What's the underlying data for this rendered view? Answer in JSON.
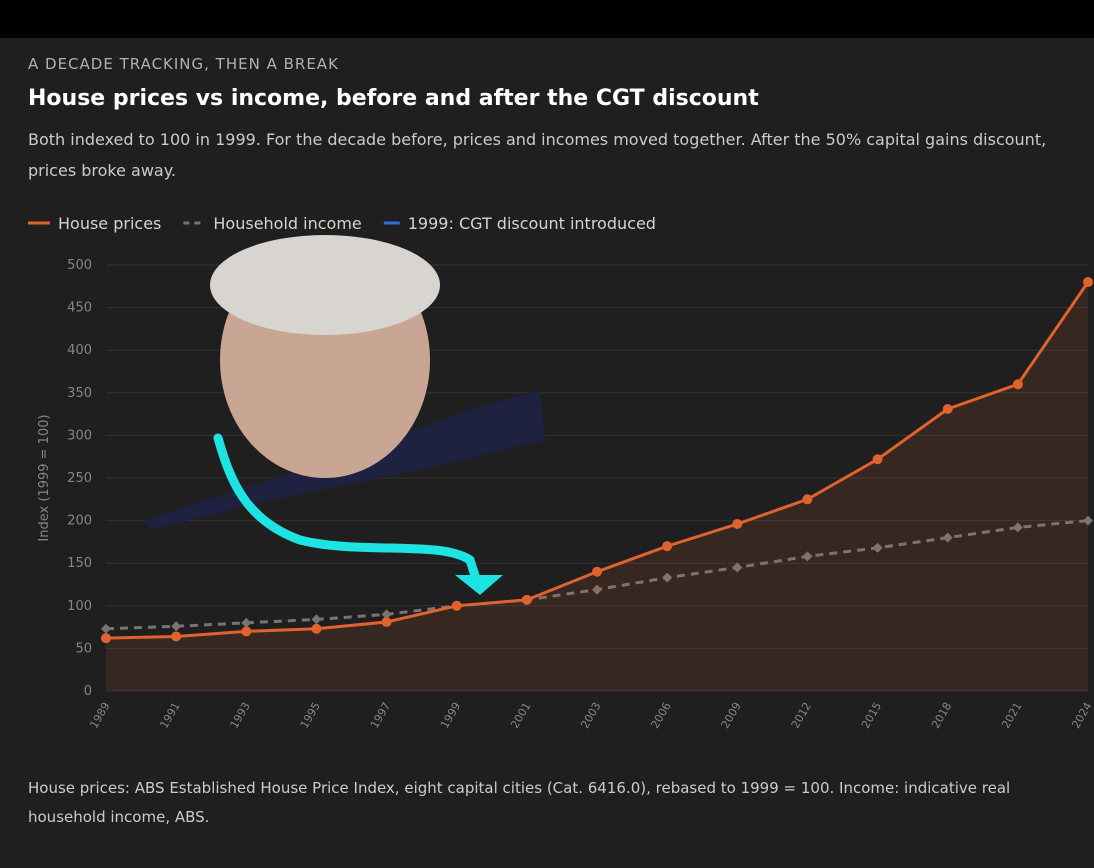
{
  "chart_data": {
    "type": "line",
    "kicker": "A DECADE TRACKING, THEN A BREAK",
    "title": "House prices vs income, before and after the CGT discount",
    "subtitle": "Both indexed to 100 in 1999. For the decade before, prices and incomes moved together. After the 50% capital gains discount, prices broke away.",
    "y_label": "Index (1999 = 100)",
    "categories": [
      "1989",
      "1991",
      "1993",
      "1995",
      "1997",
      "1999",
      "2001",
      "2003",
      "2006",
      "2009",
      "2012",
      "2015",
      "2018",
      "2021",
      "2024"
    ],
    "series": [
      {
        "name": "House prices",
        "color": "#e0622e",
        "style": "solid",
        "marker": "circle",
        "area": true,
        "values": [
          62,
          64,
          70,
          73,
          81,
          100,
          107,
          140,
          170,
          196,
          225,
          272,
          331,
          360,
          480
        ]
      },
      {
        "name": "Household income",
        "color": "#7a7370",
        "style": "dashed",
        "marker": "diamond",
        "area": false,
        "values": [
          73,
          76,
          80,
          84,
          90,
          100,
          107,
          119,
          133,
          145,
          158,
          168,
          180,
          192,
          200
        ]
      }
    ],
    "reference_line": {
      "name": "1999: CGT discount introduced",
      "color": "#2f6fd6"
    },
    "ylim": [
      0,
      500
    ],
    "yticks": [
      0,
      50,
      100,
      150,
      200,
      250,
      300,
      350,
      400,
      450,
      500
    ],
    "grid": true,
    "source": "House prices: ABS Established House Price Index, eight capital cities (Cat. 6416.0), rebased to 1999 = 100. Income: indicative real household income, ABS."
  }
}
